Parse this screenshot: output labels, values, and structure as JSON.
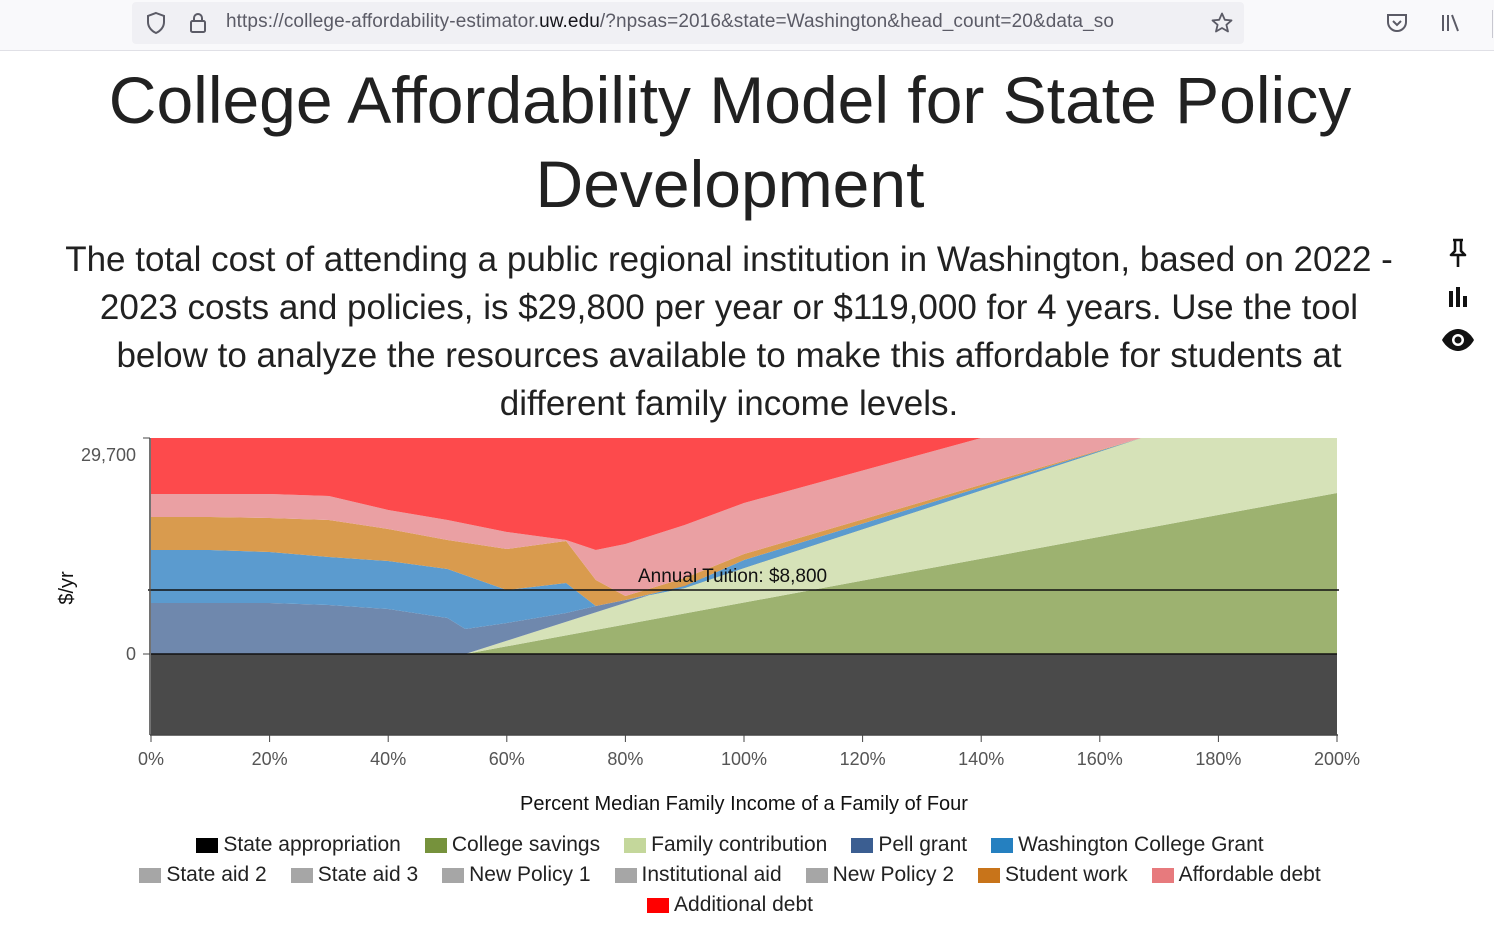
{
  "browser": {
    "url_prefix": "https://college-affordability-estimator.",
    "url_domain": "uw.edu",
    "url_suffix": "/?npsas=2016&state=Washington&head_count=20&data_so",
    "icons": [
      "shield-icon",
      "lock-icon",
      "star-icon",
      "pocket-icon",
      "library-icon"
    ]
  },
  "page": {
    "title": "College Affordability Model for State Policy Development",
    "subtitle": "The total cost of attending a public regional institution in Washington, based on 2022 - 2023 costs and policies, is $29,800 per year or $119,000 for 4 years. Use the tool below to analyze the resources available to make this affordable for students at different family income levels."
  },
  "side_tools": [
    "pin-icon",
    "bar-chart-icon",
    "eye-icon"
  ],
  "chart_data": {
    "type": "area",
    "xlabel": "Percent Median Family Income of a Family of Four",
    "ylabel": "$/yr",
    "x_ticks": [
      "0%",
      "20%",
      "40%",
      "60%",
      "80%",
      "100%",
      "120%",
      "140%",
      "160%",
      "180%",
      "200%"
    ],
    "y_ticks": [
      "29,700",
      "0"
    ],
    "xlim": [
      0,
      200
    ],
    "annotation": "Annual Tuition: $8,800",
    "tuition": 8800,
    "colors": {
      "state_appropriation": "#4a4a4a",
      "college_savings": "#9db270",
      "family_contribution": "#d6e2b8",
      "pell_grant": "#6f88ad",
      "washington_college_grant": "#5b9bcf",
      "student_work": "#d99b4e",
      "affordable_debt": "#eaa0a3",
      "additional_debt": "#fd4a4c"
    }
  },
  "legend": [
    {
      "label": "State appropriation",
      "color": "#000000"
    },
    {
      "label": "College savings",
      "color": "#76923c"
    },
    {
      "label": "Family contribution",
      "color": "#c4d79b"
    },
    {
      "label": "Pell grant",
      "color": "#3b5e91"
    },
    {
      "label": "Washington College Grant",
      "color": "#2580c0"
    },
    {
      "label": "State aid 2",
      "color": "#a6a6a6"
    },
    {
      "label": "State aid 3",
      "color": "#a6a6a6"
    },
    {
      "label": "New Policy 1",
      "color": "#a6a6a6"
    },
    {
      "label": "Institutional aid",
      "color": "#a6a6a6"
    },
    {
      "label": "New Policy 2",
      "color": "#a6a6a6"
    },
    {
      "label": "Student work",
      "color": "#c8741a"
    },
    {
      "label": "Affordable debt",
      "color": "#e77a7d"
    },
    {
      "label": "Additional debt",
      "color": "#ff0000"
    }
  ]
}
